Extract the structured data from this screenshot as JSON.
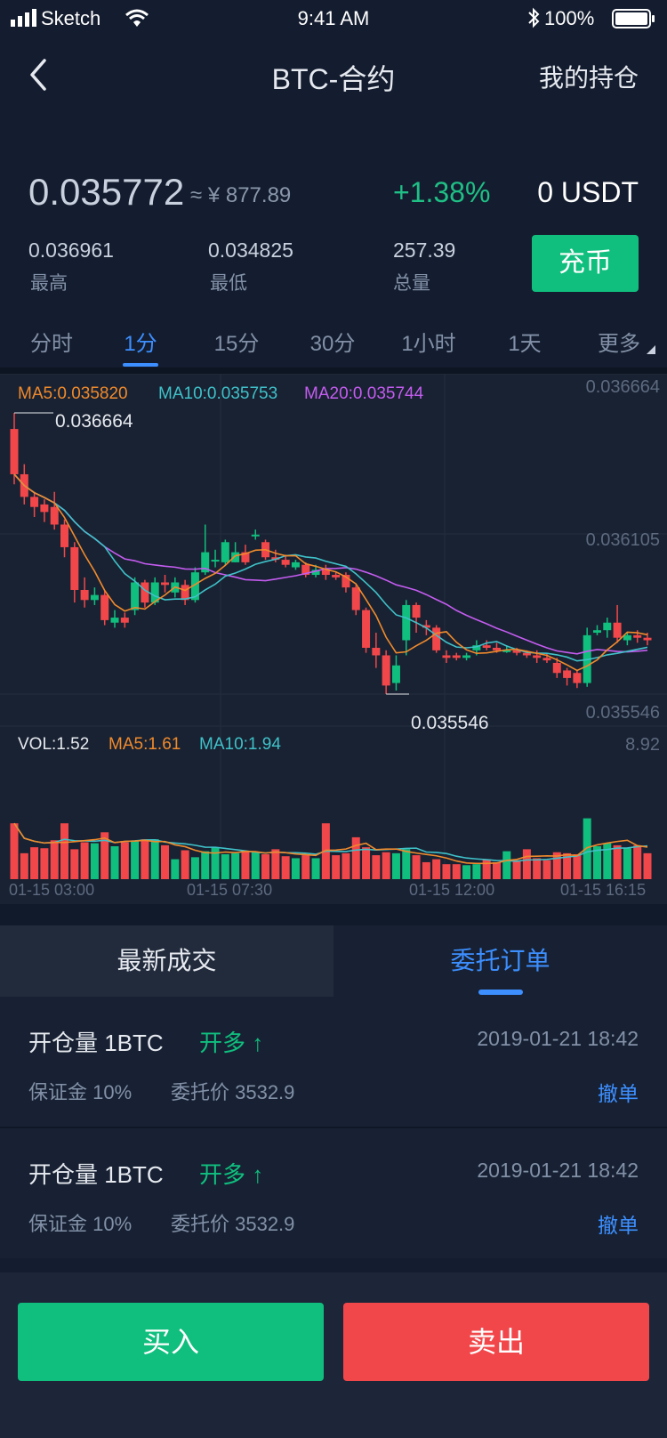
{
  "status_bar": {
    "carrier": "Sketch",
    "time": "9:41 AM",
    "battery": "100%"
  },
  "nav": {
    "title": "BTC-合约",
    "right_label": "我的持仓"
  },
  "ticker": {
    "price": "0.035772",
    "approx_cny": "≈ ¥ 877.89",
    "change": "+1.38%",
    "balance": "0 USDT",
    "stats": [
      {
        "value": "0.036961",
        "label": "最高"
      },
      {
        "value": "0.034825",
        "label": "最低"
      },
      {
        "value": "257.39",
        "label": "总量"
      }
    ],
    "deposit_label": "充币"
  },
  "period_tabs": [
    "分时",
    "1分",
    "15分",
    "30分",
    "1小时",
    "1天",
    "更多"
  ],
  "active_period": "1分",
  "colors": {
    "up": "#10bf7e",
    "down": "#f2474a",
    "ma5": "#f08a2c",
    "ma10": "#3fc1c9",
    "ma20": "#c45cf0",
    "accent": "#3d8fff"
  },
  "chart_legend": {
    "ma5": "MA5:0.035820",
    "ma10": "MA10:0.035753",
    "ma20": "MA20:0.035744",
    "vol": "VOL:1.52",
    "vol_ma5": "MA5:1.61",
    "vol_ma10": "MA10:1.94",
    "y_top": "0.036664",
    "y_mid": "0.036105",
    "y_low": "0.035546",
    "vol_max": "8.92",
    "high_marker": "0.036664",
    "low_marker": "0.035546"
  },
  "chart_data": {
    "type": "candlestick",
    "x_ticks": [
      "01-15 03:00",
      "01-15 07:30",
      "01-15 12:00",
      "01-15 16:15"
    ],
    "ylim": [
      0.035546,
      0.036664
    ],
    "vol_ylim": [
      0,
      8.92
    ],
    "candles": [
      {
        "o": 0.0366,
        "c": 0.03642,
        "h": 0.036664,
        "l": 0.03638,
        "v": 5.6
      },
      {
        "o": 0.03642,
        "c": 0.03633,
        "h": 0.03646,
        "l": 0.0363,
        "v": 2.6
      },
      {
        "o": 0.03633,
        "c": 0.03629,
        "h": 0.03635,
        "l": 0.03625,
        "v": 3.2
      },
      {
        "o": 0.0363,
        "c": 0.03627,
        "h": 0.03632,
        "l": 0.03623,
        "v": 3.1
      },
      {
        "o": 0.03629,
        "c": 0.03622,
        "h": 0.03635,
        "l": 0.0362,
        "v": 3.9
      },
      {
        "o": 0.03622,
        "c": 0.03613,
        "h": 0.03624,
        "l": 0.03609,
        "v": 5.6
      },
      {
        "o": 0.03613,
        "c": 0.03596,
        "h": 0.03615,
        "l": 0.03591,
        "v": 3.0
      },
      {
        "o": 0.03596,
        "c": 0.03592,
        "h": 0.03601,
        "l": 0.03589,
        "v": 3.7
      },
      {
        "o": 0.03592,
        "c": 0.03594,
        "h": 0.03597,
        "l": 0.0359,
        "v": 3.6
      },
      {
        "o": 0.03594,
        "c": 0.03584,
        "h": 0.03596,
        "l": 0.03582,
        "v": 4.7
      },
      {
        "o": 0.03583,
        "c": 0.03585,
        "h": 0.03588,
        "l": 0.03581,
        "v": 3.3
      },
      {
        "o": 0.03585,
        "c": 0.03583,
        "h": 0.03587,
        "l": 0.03581,
        "v": 3.7
      },
      {
        "o": 0.03588,
        "c": 0.03599,
        "h": 0.03601,
        "l": 0.03586,
        "v": 3.8
      },
      {
        "o": 0.03599,
        "c": 0.03591,
        "h": 0.036,
        "l": 0.03589,
        "v": 4.0
      },
      {
        "o": 0.03591,
        "c": 0.03599,
        "h": 0.03601,
        "l": 0.0359,
        "v": 4.0
      },
      {
        "o": 0.03599,
        "c": 0.03598,
        "h": 0.03602,
        "l": 0.03595,
        "v": 3.4
      },
      {
        "o": 0.03595,
        "c": 0.03599,
        "h": 0.03601,
        "l": 0.03593,
        "v": 2.0
      },
      {
        "o": 0.03598,
        "c": 0.03592,
        "h": 0.036,
        "l": 0.0359,
        "v": 2.9
      },
      {
        "o": 0.03592,
        "c": 0.03603,
        "h": 0.03605,
        "l": 0.03591,
        "v": 2.2
      },
      {
        "o": 0.03603,
        "c": 0.03611,
        "h": 0.03622,
        "l": 0.03602,
        "v": 2.8
      },
      {
        "o": 0.03608,
        "c": 0.03608,
        "h": 0.03612,
        "l": 0.03605,
        "v": 3.2
      },
      {
        "o": 0.03607,
        "c": 0.03615,
        "h": 0.03616,
        "l": 0.03606,
        "v": 2.5
      },
      {
        "o": 0.03607,
        "c": 0.03611,
        "h": 0.03615,
        "l": 0.03607,
        "v": 2.6
      },
      {
        "o": 0.03611,
        "c": 0.03607,
        "h": 0.03614,
        "l": 0.03606,
        "v": 2.8
      },
      {
        "o": 0.03618,
        "c": 0.03618,
        "h": 0.0362,
        "l": 0.03616,
        "v": 2.7
      },
      {
        "o": 0.03615,
        "c": 0.03609,
        "h": 0.03616,
        "l": 0.03608,
        "v": 2.5
      },
      {
        "o": 0.03609,
        "c": 0.03608,
        "h": 0.03612,
        "l": 0.03607,
        "v": 3.0
      },
      {
        "o": 0.03608,
        "c": 0.03606,
        "h": 0.0361,
        "l": 0.03605,
        "v": 2.3
      },
      {
        "o": 0.03605,
        "c": 0.03607,
        "h": 0.03608,
        "l": 0.03604,
        "v": 2.1
      },
      {
        "o": 0.03606,
        "c": 0.03602,
        "h": 0.03607,
        "l": 0.03601,
        "v": 2.4
      },
      {
        "o": 0.03602,
        "c": 0.03604,
        "h": 0.03606,
        "l": 0.03601,
        "v": 2.1
      },
      {
        "o": 0.03604,
        "c": 0.03602,
        "h": 0.03606,
        "l": 0.036,
        "v": 5.6
      },
      {
        "o": 0.03602,
        "c": 0.03601,
        "h": 0.03603,
        "l": 0.036,
        "v": 2.4
      },
      {
        "o": 0.03602,
        "c": 0.03597,
        "h": 0.03603,
        "l": 0.03595,
        "v": 2.6
      },
      {
        "o": 0.03597,
        "c": 0.03588,
        "h": 0.03598,
        "l": 0.03586,
        "v": 4.2
      },
      {
        "o": 0.03588,
        "c": 0.03573,
        "h": 0.03589,
        "l": 0.03571,
        "v": 3.2
      },
      {
        "o": 0.03573,
        "c": 0.0357,
        "h": 0.03579,
        "l": 0.03565,
        "v": 2.4
      },
      {
        "o": 0.0357,
        "c": 0.03558,
        "h": 0.03572,
        "l": 0.035546,
        "v": 2.7
      },
      {
        "o": 0.03559,
        "c": 0.03566,
        "h": 0.0357,
        "l": 0.03556,
        "v": 2.6
      },
      {
        "o": 0.03576,
        "c": 0.0359,
        "h": 0.03592,
        "l": 0.0357,
        "v": 3.0
      },
      {
        "o": 0.0359,
        "c": 0.03585,
        "h": 0.03591,
        "l": 0.03579,
        "v": 2.4
      },
      {
        "o": 0.03582,
        "c": 0.03581,
        "h": 0.03584,
        "l": 0.03578,
        "v": 1.7
      },
      {
        "o": 0.03581,
        "c": 0.03572,
        "h": 0.03582,
        "l": 0.03571,
        "v": 2.0
      },
      {
        "o": 0.0357,
        "c": 0.03569,
        "h": 0.03572,
        "l": 0.03567,
        "v": 1.5
      },
      {
        "o": 0.0357,
        "c": 0.03569,
        "h": 0.03571,
        "l": 0.03568,
        "v": 1.5
      },
      {
        "o": 0.03569,
        "c": 0.0357,
        "h": 0.03571,
        "l": 0.03568,
        "v": 1.4
      },
      {
        "o": 0.03572,
        "c": 0.03574,
        "h": 0.03576,
        "l": 0.0357,
        "v": 1.5
      },
      {
        "o": 0.03574,
        "c": 0.03573,
        "h": 0.03576,
        "l": 0.03572,
        "v": 2.0
      },
      {
        "o": 0.03573,
        "c": 0.03572,
        "h": 0.03575,
        "l": 0.03571,
        "v": 1.7
      },
      {
        "o": 0.03572,
        "c": 0.03572,
        "h": 0.03574,
        "l": 0.03571,
        "v": 2.8
      },
      {
        "o": 0.03572,
        "c": 0.03571,
        "h": 0.03573,
        "l": 0.0357,
        "v": 1.9
      },
      {
        "o": 0.03571,
        "c": 0.0357,
        "h": 0.03572,
        "l": 0.03569,
        "v": 3.0
      },
      {
        "o": 0.0357,
        "c": 0.03569,
        "h": 0.03572,
        "l": 0.03567,
        "v": 2.1
      },
      {
        "o": 0.03569,
        "c": 0.03568,
        "h": 0.03571,
        "l": 0.03567,
        "v": 1.9
      },
      {
        "o": 0.03567,
        "c": 0.03563,
        "h": 0.03569,
        "l": 0.03561,
        "v": 2.7
      },
      {
        "o": 0.03564,
        "c": 0.03561,
        "h": 0.03565,
        "l": 0.03558,
        "v": 2.6
      },
      {
        "o": 0.03563,
        "c": 0.03559,
        "h": 0.03564,
        "l": 0.03557,
        "v": 2.5
      },
      {
        "o": 0.03559,
        "c": 0.03578,
        "h": 0.03581,
        "l": 0.035575,
        "v": 6.1
      },
      {
        "o": 0.03579,
        "c": 0.0358,
        "h": 0.03582,
        "l": 0.03578,
        "v": 3.3
      },
      {
        "o": 0.0358,
        "c": 0.03583,
        "h": 0.03585,
        "l": 0.03577,
        "v": 3.6
      },
      {
        "o": 0.03583,
        "c": 0.03577,
        "h": 0.0359,
        "l": 0.03575,
        "v": 3.4
      },
      {
        "o": 0.03576,
        "c": 0.03578,
        "h": 0.03579,
        "l": 0.03574,
        "v": 3.1
      },
      {
        "o": 0.03578,
        "c": 0.03577,
        "h": 0.0358,
        "l": 0.03575,
        "v": 3.4
      },
      {
        "o": 0.03577,
        "c": 0.03576,
        "h": 0.03579,
        "l": 0.03574,
        "v": 2.6
      }
    ]
  },
  "order_tabs": {
    "left": "最新成交",
    "right": "委托订单"
  },
  "orders": [
    {
      "title": "开仓量 1BTC",
      "side": "开多",
      "arrow": "↑",
      "time": "2019-01-21 18:42",
      "margin": "保证金 10%",
      "price": "委托价 3532.9",
      "cancel": "撤单"
    },
    {
      "title": "开仓量 1BTC",
      "side": "开多",
      "arrow": "↑",
      "time": "2019-01-21 18:42",
      "margin": "保证金 10%",
      "price": "委托价 3532.9",
      "cancel": "撤单"
    }
  ],
  "actions": {
    "buy": "买入",
    "sell": "卖出"
  }
}
